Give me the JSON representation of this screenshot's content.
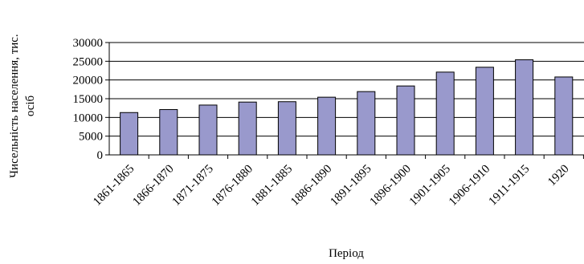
{
  "chart_data": {
    "type": "bar",
    "categories": [
      "1861-1865",
      "1866-1870",
      "1871-1875",
      "1876-1880",
      "1881-1885",
      "1886-1890",
      "1891-1895",
      "1896-1900",
      "1901-1905",
      "1906-1910",
      "1911-1915",
      "1920"
    ],
    "values": [
      11300,
      12100,
      13300,
      14100,
      14200,
      15400,
      16900,
      18400,
      22100,
      23400,
      25400,
      20800
    ],
    "xlabel": "Період",
    "ylabel_line1": "Чисельність населення, тис.",
    "ylabel_line2": "осіб",
    "ylim": [
      0,
      30000
    ],
    "yticks": [
      "0",
      "5000",
      "10000",
      "15000",
      "20000",
      "25000",
      "30000"
    ],
    "grid": true,
    "legend": "none",
    "bar_color": "#9999cc"
  }
}
